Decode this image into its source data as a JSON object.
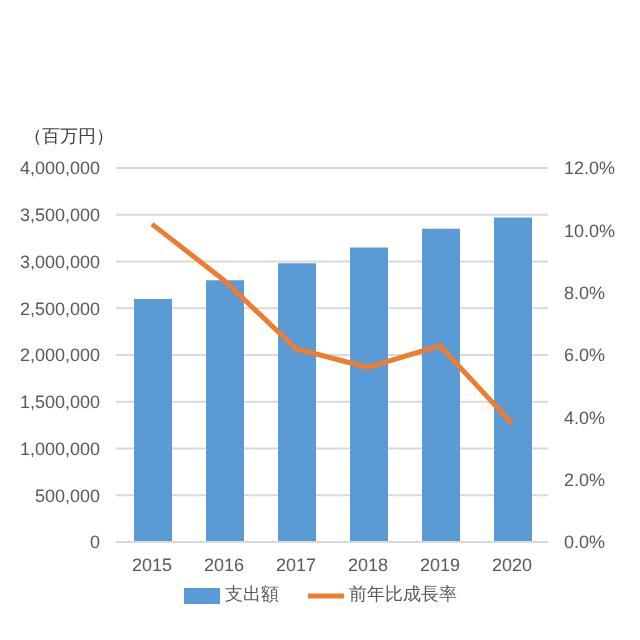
{
  "chart_data": {
    "type": "bar",
    "ylabel": "（百万円）",
    "categories": [
      "2015",
      "2016",
      "2017",
      "2018",
      "2019",
      "2020"
    ],
    "series": [
      {
        "name": "支出額",
        "color": "#5b9bd5",
        "values": [
          2600000,
          2800000,
          2980000,
          3150000,
          3350000,
          3470000
        ]
      },
      {
        "name": "前年比成長率",
        "type": "line",
        "axis": "y2",
        "color": "#ed7d31",
        "values": [
          10.2,
          8.4,
          6.2,
          5.6,
          6.3,
          3.8
        ]
      }
    ],
    "ylim": [
      0,
      4000000
    ],
    "yticks": [
      {
        "value": 0,
        "label": "0"
      },
      {
        "value": 500000,
        "label": "500,000"
      },
      {
        "value": 1000000,
        "label": "1,000,000"
      },
      {
        "value": 1500000,
        "label": "1,500,000"
      },
      {
        "value": 2000000,
        "label": "2,000,000"
      },
      {
        "value": 2500000,
        "label": "2,500,000"
      },
      {
        "value": 3000000,
        "label": "3,000,000"
      },
      {
        "value": 3500000,
        "label": "3,500,000"
      },
      {
        "value": 4000000,
        "label": "4,000,000"
      }
    ],
    "y2lim": [
      0,
      12
    ],
    "y2ticks": [
      {
        "value": 0,
        "label": "0.0%"
      },
      {
        "value": 2,
        "label": "2.0%"
      },
      {
        "value": 4,
        "label": "4.0%"
      },
      {
        "value": 6,
        "label": "6.0%"
      },
      {
        "value": 8,
        "label": "8.0%"
      },
      {
        "value": 10,
        "label": "10.0%"
      },
      {
        "value": 12,
        "label": "12.0%"
      }
    ],
    "grid": "y",
    "legend": "bottom",
    "marker": "none"
  }
}
